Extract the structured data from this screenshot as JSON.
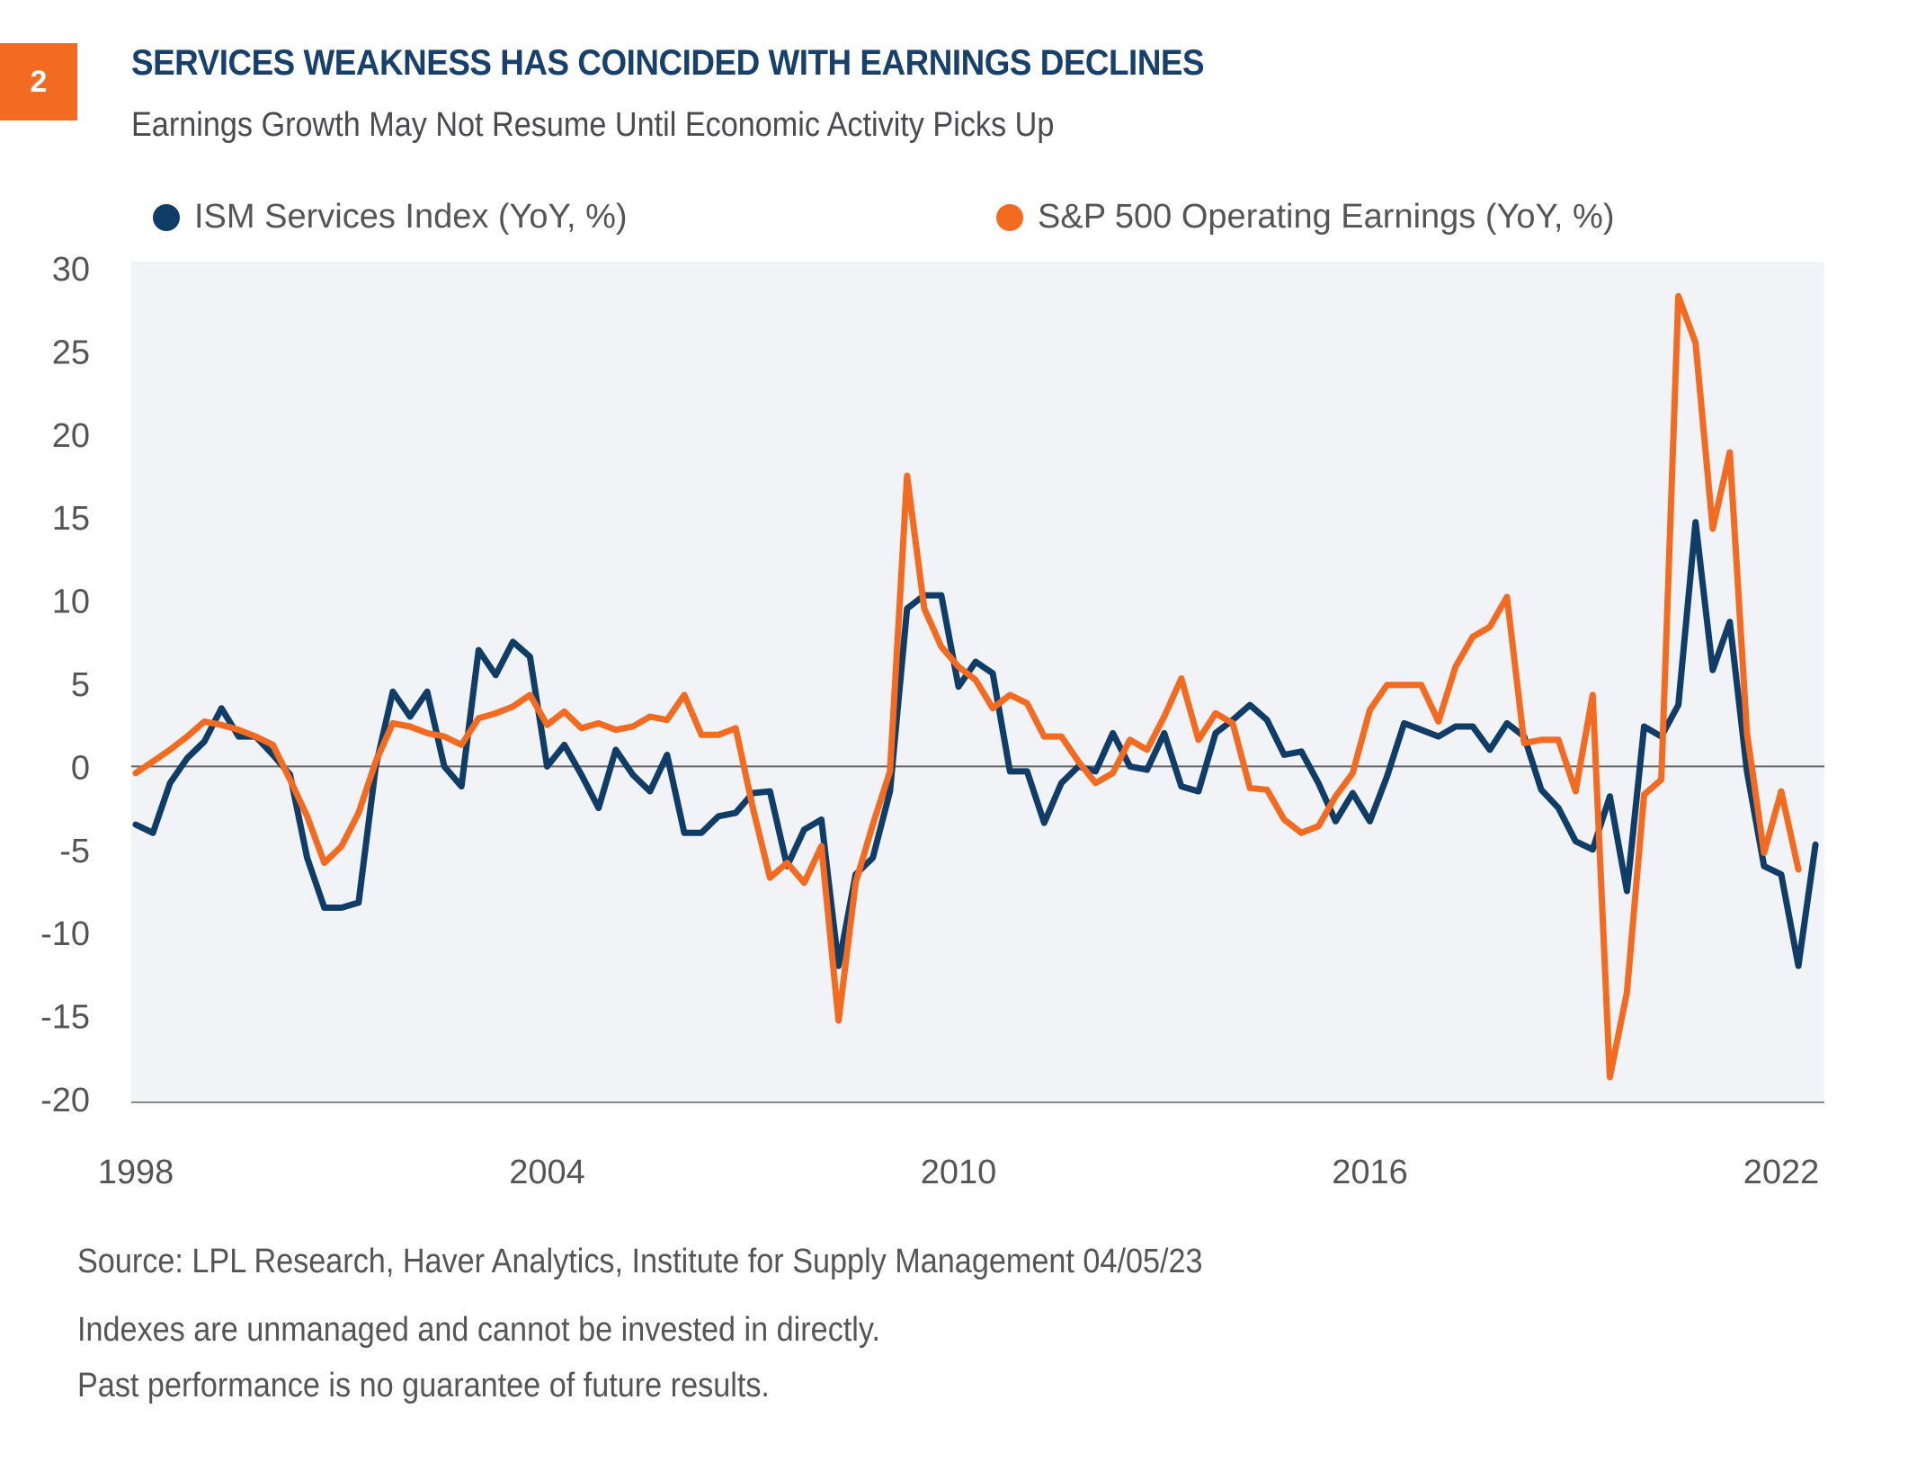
{
  "figure": {
    "number": "2",
    "title": "SERVICES WEAKNESS HAS COINCIDED WITH EARNINGS DECLINES",
    "subtitle": "Earnings Growth May Not Resume Until Economic Activity Picks Up",
    "colors": {
      "badge": "#f26b21",
      "title": "#17406d",
      "ism": "#0f3d68",
      "sp500": "#f26b21",
      "plot_bg": "#f2f3f6",
      "zero_line": "#666666"
    }
  },
  "legend": [
    {
      "label": "ISM Services Index (YoY, %)",
      "color": "#0f3d68"
    },
    {
      "label": "S&P 500 Operating Earnings (YoY, %)",
      "color": "#f26b21"
    }
  ],
  "footer": {
    "source": "Source: LPL Research, Haver Analytics, Institute for Supply Management  04/05/23",
    "disclaimer1": "Indexes are unmanaged and cannot be invested in directly.",
    "disclaimer2": "Past performance is no guarantee of future results."
  },
  "chart_data": {
    "type": "line",
    "title": "SERVICES WEAKNESS HAS COINCIDED WITH EARNINGS DECLINES",
    "subtitle": "Earnings Growth May Not Resume Until Economic Activity Picks Up",
    "xlabel": "",
    "ylabel": "",
    "x_start": 1998.0,
    "x_step": 0.25,
    "x_frequency": "quarterly",
    "xlim": [
      1998,
      2022.6
    ],
    "ylim": [
      -20,
      30
    ],
    "x_ticks": [
      "1998",
      "2004",
      "2010",
      "2016",
      "2022"
    ],
    "x_tick_values": [
      1998,
      2004,
      2010,
      2016,
      2022
    ],
    "y_ticks": [
      "30",
      "25",
      "20",
      "15",
      "10",
      "5",
      "0",
      "-5",
      "-10",
      "-15",
      "-20"
    ],
    "y_tick_values": [
      30,
      25,
      20,
      15,
      10,
      5,
      0,
      -5,
      -10,
      -15,
      -20
    ],
    "zero_line": true,
    "grid": false,
    "legend_position": "top",
    "series": [
      {
        "name": "ISM Services Index (YoY, %)",
        "color": "#0f3d68",
        "values": [
          -3.5,
          -4,
          -1,
          0.5,
          1.5,
          3.5,
          1.8,
          1.8,
          0.7,
          -0.5,
          -5.5,
          -8.5,
          -8.5,
          -8.2,
          0,
          4.5,
          3,
          4.5,
          0,
          -1.2,
          7,
          5.5,
          7.5,
          6.6,
          0,
          1.3,
          -0.5,
          -2.5,
          1,
          -0.5,
          -1.5,
          0.7,
          -4,
          -4,
          -3,
          -2.8,
          -1.6,
          -1.5,
          -6,
          -3.8,
          -3.2,
          -12,
          -6.5,
          -5.5,
          -1.5,
          9.5,
          10.3,
          10.3,
          4.8,
          6.3,
          5.6,
          -0.3,
          -0.3,
          -3.4,
          -1,
          0,
          -0.3,
          2,
          0,
          -0.2,
          2,
          -1.2,
          -1.5,
          2,
          2.8,
          3.7,
          2.8,
          0.7,
          0.9,
          -1,
          -3.3,
          -1.6,
          -3.3,
          -0.6,
          2.6,
          2.2,
          1.8,
          2.4,
          2.4,
          1,
          2.6,
          1.8,
          -1.4,
          -2.5,
          -4.5,
          -5,
          -1.8,
          -7.5,
          2.4,
          1.8,
          3.7,
          14.7,
          5.8,
          8.7,
          -0.3,
          -6,
          -6.5,
          -12,
          -4.7
        ]
      },
      {
        "name": "S&P 500 Operating Earnings (YoY, %)",
        "color": "#f26b21",
        "values": [
          -0.4,
          0.3,
          1,
          1.8,
          2.7,
          2.5,
          2.2,
          1.8,
          1.3,
          -0.8,
          -3,
          -5.8,
          -4.8,
          -2.8,
          0.3,
          2.6,
          2.4,
          2,
          1.8,
          1.3,
          2.9,
          3.2,
          3.6,
          4.3,
          2.5,
          3.3,
          2.3,
          2.6,
          2.2,
          2.4,
          3,
          2.8,
          4.3,
          1.9,
          1.9,
          2.3,
          -2.5,
          -6.7,
          -5.8,
          -7,
          -4.8,
          -15.3,
          -7,
          -3.5,
          -0.3,
          17.5,
          9.5,
          7.2,
          6,
          5.2,
          3.5,
          4.3,
          3.8,
          1.8,
          1.8,
          0.3,
          -1,
          -0.4,
          1.6,
          1,
          3,
          5.3,
          1.6,
          3.2,
          2.6,
          -1.3,
          -1.4,
          -3.2,
          -4,
          -3.6,
          -1.8,
          -0.4,
          3.4,
          4.9,
          4.9,
          4.9,
          2.7,
          6,
          7.8,
          8.4,
          10.2,
          1.4,
          1.6,
          1.6,
          -1.5,
          4.3,
          -18.7,
          -13.6,
          -1.7,
          -0.8,
          28.3,
          25.5,
          14.3,
          18.9,
          2,
          -5.2,
          -1.5,
          -6.2
        ]
      }
    ]
  }
}
